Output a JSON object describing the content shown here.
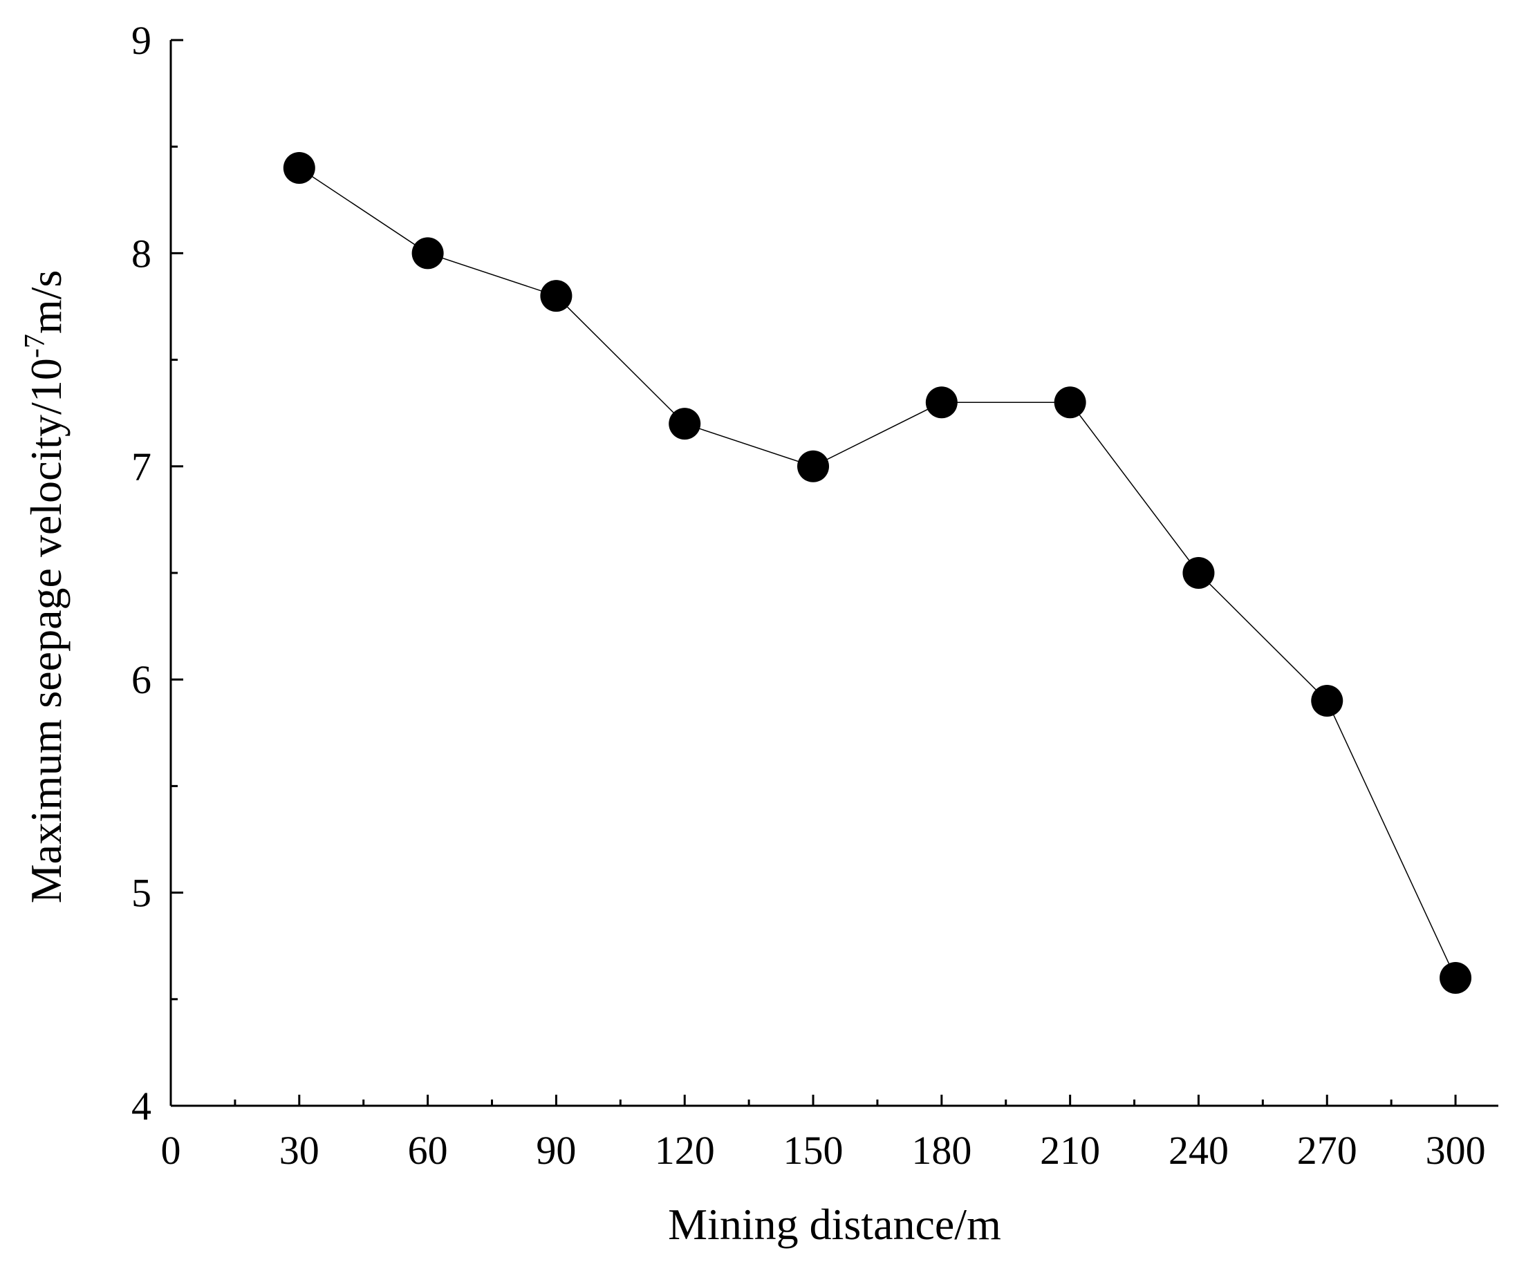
{
  "chart_data": {
    "type": "line",
    "title": "",
    "xlabel": "Mining distance/m",
    "ylabel_parts": {
      "pre": "Maximum seepage velocity/10",
      "sup": "-7",
      "post": "m/s"
    },
    "xlim": [
      0,
      310
    ],
    "ylim": [
      4,
      9
    ],
    "x_ticks": [
      0,
      30,
      60,
      90,
      120,
      150,
      180,
      210,
      240,
      270,
      300
    ],
    "y_ticks": [
      4,
      5,
      6,
      7,
      8,
      9
    ],
    "x_minor_step": 15,
    "y_minor_step": 0.5,
    "grid": false,
    "series": [
      {
        "x": [
          30,
          60,
          90,
          120,
          150,
          180,
          210,
          240,
          270,
          300
        ],
        "y": [
          8.4,
          8.0,
          7.8,
          7.2,
          7.0,
          7.3,
          7.3,
          6.5,
          5.9,
          4.6
        ],
        "color": "#000000",
        "marker": "filled-circle"
      }
    ]
  }
}
